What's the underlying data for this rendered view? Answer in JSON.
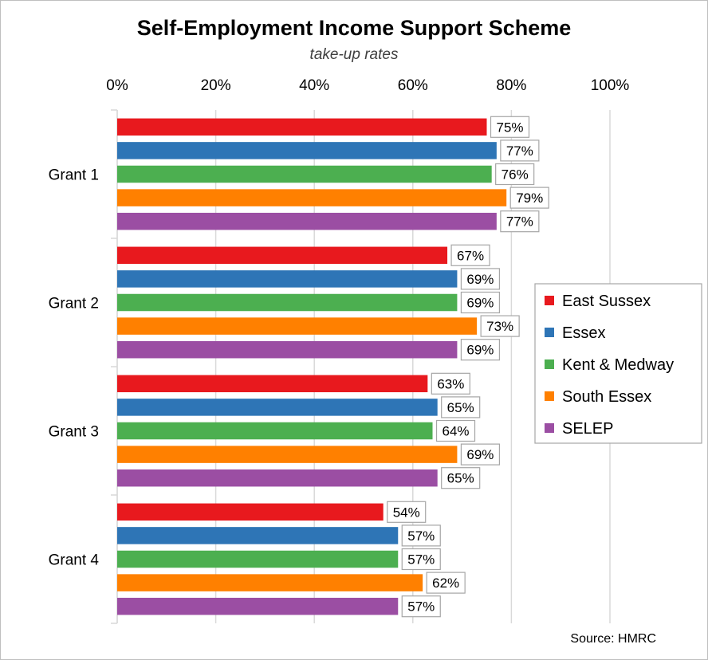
{
  "chart_data": {
    "type": "bar",
    "orientation": "horizontal",
    "title": "Self-Employment Income Support Scheme",
    "subtitle": "take-up rates",
    "source": "Source: HMRC",
    "categories": [
      "Grant 1",
      "Grant 2",
      "Grant 3",
      "Grant 4"
    ],
    "series": [
      {
        "name": "East Sussex",
        "color": "#e8191e",
        "values": [
          75,
          67,
          63,
          54
        ]
      },
      {
        "name": "Essex",
        "color": "#2e75b6",
        "values": [
          77,
          69,
          65,
          57
        ]
      },
      {
        "name": "Kent & Medway",
        "color": "#4caf50",
        "values": [
          76,
          69,
          64,
          57
        ]
      },
      {
        "name": "South Essex",
        "color": "#ff8000",
        "values": [
          79,
          73,
          69,
          62
        ]
      },
      {
        "name": "SELEP",
        "color": "#9b4ea3",
        "values": [
          77,
          69,
          65,
          57
        ]
      }
    ],
    "xlim": [
      0,
      100
    ],
    "x_ticks": [
      0,
      20,
      40,
      60,
      80,
      100
    ],
    "x_tick_labels": [
      "0%",
      "20%",
      "40%",
      "60%",
      "80%",
      "100%"
    ],
    "value_suffix": "%",
    "axis_position": "top",
    "grid": true,
    "legend_position": "right"
  }
}
